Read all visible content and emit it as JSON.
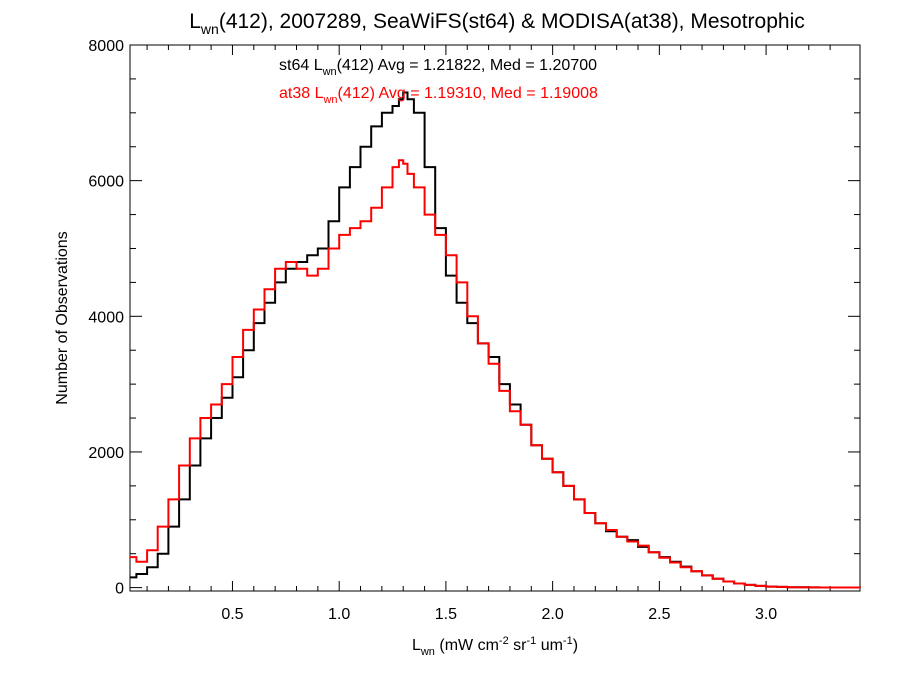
{
  "chart_data": {
    "type": "line",
    "title_main": "L",
    "title_sub": "wn",
    "title_rest": "(412), 2007289, SeaWiFS(st64) & MODISA(at38), Mesotrophic",
    "xlabel_main": "L",
    "xlabel_sub": "wn",
    "xlabel_part1": " (mW cm",
    "xlabel_sup1": "-2",
    "xlabel_part2": " sr",
    "xlabel_sup2": "-1",
    "xlabel_part3": " um",
    "xlabel_sup3": "-1",
    "xlabel_close": ")",
    "ylabel": "Number of Observations",
    "xlim": [
      0.02,
      3.44
    ],
    "ylim": [
      -50,
      8000
    ],
    "xticks": [
      0.5,
      1.0,
      1.5,
      2.0,
      2.5,
      3.0
    ],
    "xtick_labels": [
      "0.5",
      "1.0",
      "1.5",
      "2.0",
      "2.5",
      "3.0"
    ],
    "yticks": [
      0,
      2000,
      4000,
      6000,
      8000
    ],
    "ytick_labels": [
      "0",
      "2000",
      "4000",
      "6000",
      "8000"
    ],
    "annotations": [
      {
        "prefix": "st64 L",
        "sub": "wn",
        "rest": "(412) Avg = 1.21822, Med = 1.20700",
        "color": "#000000"
      },
      {
        "prefix": "at38 L",
        "sub": "wn",
        "rest": "(412) Avg = 1.19310, Med = 1.19008",
        "color": "#ff0000"
      }
    ],
    "series": [
      {
        "name": "st64",
        "color": "#000000",
        "x": [
          0.02,
          0.05,
          0.1,
          0.15,
          0.2,
          0.25,
          0.3,
          0.35,
          0.4,
          0.45,
          0.5,
          0.55,
          0.6,
          0.65,
          0.7,
          0.75,
          0.8,
          0.85,
          0.9,
          0.95,
          1.0,
          1.05,
          1.1,
          1.15,
          1.2,
          1.25,
          1.28,
          1.3,
          1.32,
          1.35,
          1.4,
          1.45,
          1.5,
          1.55,
          1.6,
          1.65,
          1.7,
          1.75,
          1.8,
          1.85,
          1.9,
          1.95,
          2.0,
          2.05,
          2.1,
          2.15,
          2.2,
          2.25,
          2.3,
          2.35,
          2.4,
          2.45,
          2.5,
          2.55,
          2.6,
          2.65,
          2.7,
          2.75,
          2.8,
          2.85,
          2.9,
          2.95,
          3.0,
          3.05,
          3.1,
          3.15,
          3.2,
          3.25,
          3.3,
          3.35,
          3.44
        ],
        "values": [
          150,
          200,
          300,
          500,
          900,
          1300,
          1800,
          2200,
          2500,
          2800,
          3100,
          3500,
          3900,
          4200,
          4500,
          4700,
          4800,
          4900,
          5000,
          5400,
          5900,
          6200,
          6500,
          6800,
          7000,
          7100,
          7200,
          7300,
          7200,
          7000,
          6200,
          5300,
          4600,
          4200,
          3900,
          3600,
          3400,
          3000,
          2700,
          2400,
          2100,
          1900,
          1700,
          1500,
          1300,
          1100,
          950,
          830,
          750,
          700,
          600,
          520,
          450,
          380,
          310,
          240,
          180,
          130,
          90,
          60,
          40,
          25,
          15,
          10,
          6,
          4,
          3,
          2,
          1,
          1,
          0
        ]
      },
      {
        "name": "at38",
        "color": "#ff0000",
        "x": [
          0.02,
          0.05,
          0.1,
          0.15,
          0.2,
          0.25,
          0.3,
          0.35,
          0.4,
          0.45,
          0.5,
          0.55,
          0.6,
          0.65,
          0.7,
          0.75,
          0.8,
          0.85,
          0.9,
          0.95,
          1.0,
          1.05,
          1.1,
          1.15,
          1.2,
          1.25,
          1.28,
          1.3,
          1.32,
          1.35,
          1.4,
          1.45,
          1.5,
          1.55,
          1.6,
          1.65,
          1.7,
          1.75,
          1.8,
          1.85,
          1.9,
          1.95,
          2.0,
          2.05,
          2.1,
          2.15,
          2.2,
          2.25,
          2.3,
          2.35,
          2.4,
          2.45,
          2.5,
          2.55,
          2.6,
          2.65,
          2.7,
          2.75,
          2.8,
          2.85,
          2.9,
          2.95,
          3.0,
          3.05,
          3.1,
          3.15,
          3.2,
          3.25,
          3.3,
          3.35,
          3.44
        ],
        "values": [
          450,
          380,
          550,
          900,
          1300,
          1800,
          2200,
          2500,
          2700,
          3000,
          3400,
          3800,
          4100,
          4400,
          4700,
          4800,
          4700,
          4600,
          4700,
          5000,
          5200,
          5300,
          5400,
          5600,
          5900,
          6200,
          6300,
          6250,
          6100,
          5900,
          5500,
          5200,
          4900,
          4500,
          4000,
          3600,
          3300,
          2900,
          2600,
          2400,
          2100,
          1900,
          1700,
          1500,
          1300,
          1100,
          950,
          850,
          750,
          680,
          620,
          520,
          440,
          370,
          300,
          240,
          180,
          130,
          90,
          60,
          40,
          25,
          15,
          10,
          6,
          4,
          3,
          2,
          1,
          1,
          0
        ]
      }
    ]
  }
}
